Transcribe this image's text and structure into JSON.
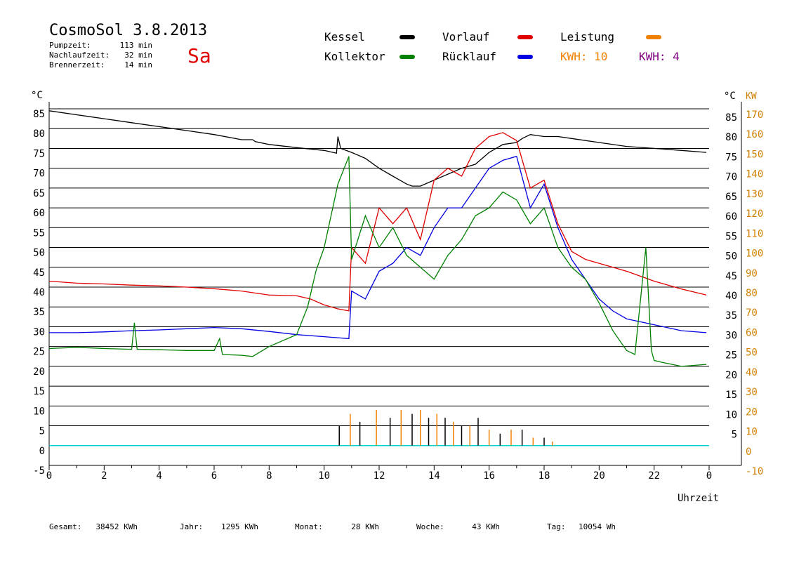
{
  "header": {
    "title": "CosmoSol 3.8.2013",
    "day": "Sa",
    "stats": [
      {
        "label": "Pumpzeit:",
        "value": "113 min"
      },
      {
        "label": "Nachlaufzeit:",
        "value": "32 min"
      },
      {
        "label": "Brennerzeit:",
        "value": "14 min"
      }
    ]
  },
  "legend": {
    "items": [
      {
        "label": "Kessel",
        "color": "#000000"
      },
      {
        "label": "Vorlauf",
        "color": "#e00000"
      },
      {
        "label": "Leistung",
        "color": "#f08000"
      },
      {
        "label": "Kollektor",
        "color": "#008000"
      },
      {
        "label": "Rücklauf",
        "color": "#0000e0"
      }
    ],
    "kwh1": "KWH: 10",
    "kwh1_color": "#f08000",
    "kwh2": "KWH: 4",
    "kwh2_color": "#800080"
  },
  "footer": [
    {
      "label": "Gesamt:",
      "value": "38452 KWh"
    },
    {
      "label": "Jahr:",
      "value": "1295 KWh"
    },
    {
      "label": "Monat:",
      "value": "28 KWh"
    },
    {
      "label": "Woche:",
      "value": "43 KWh"
    },
    {
      "label": "Tag:",
      "value": "10054 Wh"
    }
  ],
  "chart_data": {
    "type": "line",
    "xlabel": "Uhrzeit",
    "ylabel_left": "°C",
    "ylabel_right_unit": "°C",
    "ylabel_right_kw": "KW",
    "xlim": [
      0,
      24
    ],
    "ylim": [
      -5,
      85
    ],
    "grid": true,
    "x_ticks": [
      "0",
      "2",
      "4",
      "6",
      "8",
      "10",
      "12",
      "14",
      "16",
      "18",
      "20",
      "22",
      "0"
    ],
    "y_ticks_left": [
      "85",
      "80",
      "75",
      "70",
      "65",
      "60",
      "55",
      "50",
      "45",
      "40",
      "35",
      "30",
      "25",
      "20",
      "15",
      "10",
      "5",
      "0",
      "-5"
    ],
    "y_ticks_right_c": [
      "85",
      "80",
      "75",
      "70",
      "65",
      "60",
      "55",
      "50",
      "45",
      "40",
      "35",
      "30",
      "25",
      "20",
      "15",
      "10",
      "5"
    ],
    "y_ticks_right_kw": [
      "170",
      "160",
      "150",
      "140",
      "130",
      "120",
      "110",
      "100",
      "90",
      "80",
      "70",
      "60",
      "50",
      "40",
      "30",
      "20",
      "10",
      "0",
      "-10"
    ],
    "series": [
      {
        "name": "Kessel",
        "color": "#000000",
        "x": [
          0,
          1,
          2,
          3,
          4,
          5,
          6,
          7,
          7.4,
          7.5,
          8,
          9,
          10,
          10.45,
          10.5,
          10.6,
          11,
          11.5,
          12,
          12.5,
          13,
          13.2,
          13.5,
          14,
          14.5,
          15,
          15.5,
          16,
          16.5,
          17,
          17.2,
          17.5,
          18,
          18.5,
          19,
          20,
          21,
          22,
          23,
          23.9
        ],
        "y": [
          84.5,
          83.5,
          82.5,
          81.5,
          80.5,
          79.5,
          78.5,
          77.2,
          77.2,
          76.7,
          76,
          75.2,
          74.5,
          73.8,
          78,
          75,
          74,
          72.5,
          70,
          68,
          66,
          65.5,
          65.5,
          67,
          68.5,
          70,
          71,
          74,
          76,
          76.5,
          77.5,
          78.5,
          78,
          78,
          77.5,
          76.5,
          75.5,
          75,
          74.5,
          74
        ]
      },
      {
        "name": "Vorlauf",
        "color": "#e00000",
        "x": [
          0,
          1,
          2,
          3,
          4,
          5,
          6,
          7,
          7.5,
          8,
          9,
          9.5,
          10,
          10.5,
          10.9,
          11,
          11.5,
          12,
          12.5,
          13,
          13.5,
          14,
          14.5,
          15,
          15.5,
          16,
          16.5,
          17,
          17.5,
          18,
          18.5,
          19,
          19.5,
          20,
          21,
          22,
          23,
          23.9
        ],
        "y": [
          41.5,
          41,
          40.8,
          40.5,
          40.3,
          40,
          39.6,
          39,
          38.5,
          38,
          37.8,
          37,
          35.5,
          34.5,
          34,
          50,
          46,
          60,
          56,
          60,
          52,
          67,
          70,
          68,
          75,
          78,
          79,
          77,
          65,
          67,
          56,
          49,
          47,
          46,
          44,
          41.5,
          39.5,
          38
        ]
      },
      {
        "name": "Rücklauf",
        "color": "#0000e0",
        "x": [
          0,
          1,
          2,
          3,
          4,
          5,
          6,
          7,
          8,
          9,
          10,
          10.9,
          11,
          11.5,
          12,
          12.5,
          13,
          13.5,
          14,
          14.5,
          15,
          15.5,
          16,
          16.5,
          17,
          17.5,
          18,
          18.5,
          19,
          19.5,
          20,
          20.5,
          21,
          22,
          23,
          23.9
        ],
        "y": [
          28.5,
          28.5,
          28.7,
          29,
          29.2,
          29.5,
          29.8,
          29.5,
          28.8,
          28,
          27.5,
          27,
          39,
          37,
          44,
          46,
          50,
          48,
          55,
          60,
          60,
          65,
          70,
          72,
          73,
          60,
          66,
          55,
          47,
          42,
          37,
          34,
          32,
          30.5,
          29,
          28.5
        ]
      },
      {
        "name": "Kollektor",
        "color": "#008000",
        "x": [
          0,
          1,
          2,
          3,
          3.1,
          3.2,
          4,
          5,
          6,
          6.2,
          6.3,
          7,
          7.4,
          8,
          9,
          9.4,
          9.7,
          10,
          10.5,
          10.9,
          11,
          11.5,
          12,
          12.5,
          13,
          13.5,
          14,
          14.5,
          15,
          15.5,
          16,
          16.5,
          17,
          17.5,
          18,
          18.5,
          19,
          19.5,
          20,
          20.5,
          21,
          21.3,
          21.7,
          21.9,
          22,
          22.3,
          23,
          23.9
        ],
        "y": [
          24.5,
          24.8,
          24.5,
          24.3,
          31,
          24.3,
          24.2,
          24,
          24,
          27,
          23,
          22.8,
          22.5,
          25,
          28,
          35,
          44,
          50,
          66,
          73,
          47,
          58,
          50,
          55,
          48,
          45,
          42,
          48,
          52,
          58,
          60,
          64,
          62,
          56,
          60,
          50,
          45,
          42,
          36,
          29,
          24,
          23,
          50,
          24,
          21.5,
          21,
          20,
          20.5
        ]
      }
    ],
    "power_bars": {
      "x": [
        10.55,
        10.95,
        11.3,
        11.9,
        12.4,
        12.8,
        13.2,
        13.5,
        13.8,
        14.1,
        14.4,
        14.7,
        15,
        15.3,
        15.6,
        16,
        16.4,
        16.8,
        17.2,
        17.6,
        18,
        18.3
      ],
      "y": [
        5,
        8,
        6,
        9,
        7,
        9,
        8,
        9,
        7,
        8,
        7,
        6,
        5,
        5,
        7,
        4,
        3,
        4,
        4,
        2,
        2,
        1
      ]
    }
  }
}
